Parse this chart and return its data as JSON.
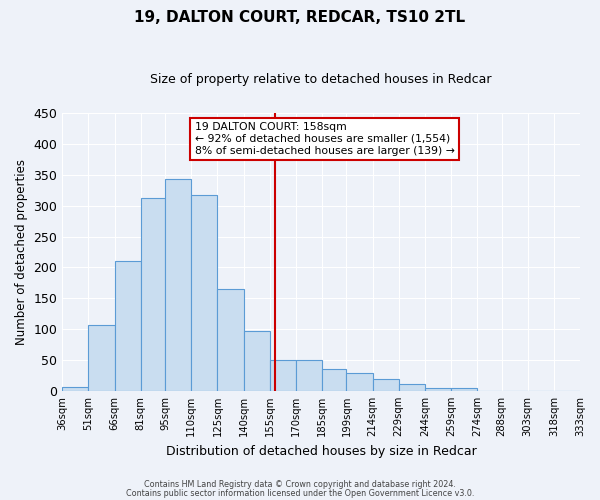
{
  "title": "19, DALTON COURT, REDCAR, TS10 2TL",
  "subtitle": "Size of property relative to detached houses in Redcar",
  "xlabel": "Distribution of detached houses by size in Redcar",
  "ylabel": "Number of detached properties",
  "bar_left_edges": [
    36,
    51,
    66,
    81,
    95,
    110,
    125,
    140,
    155,
    170,
    185,
    199,
    214,
    229,
    244,
    259,
    274,
    288,
    303,
    318
  ],
  "bar_widths": [
    15,
    15,
    15,
    14,
    15,
    15,
    15,
    15,
    15,
    15,
    14,
    15,
    15,
    15,
    15,
    15,
    14,
    15,
    15,
    15
  ],
  "bar_heights": [
    6,
    106,
    210,
    313,
    344,
    317,
    165,
    97,
    50,
    50,
    36,
    29,
    19,
    11,
    4,
    5,
    0,
    0,
    0,
    0
  ],
  "tick_positions": [
    36,
    51,
    66,
    81,
    95,
    110,
    125,
    140,
    155,
    170,
    185,
    199,
    214,
    229,
    244,
    259,
    274,
    288,
    303,
    318,
    333
  ],
  "tick_labels": [
    "36sqm",
    "51sqm",
    "66sqm",
    "81sqm",
    "95sqm",
    "110sqm",
    "125sqm",
    "140sqm",
    "155sqm",
    "170sqm",
    "185sqm",
    "199sqm",
    "214sqm",
    "229sqm",
    "244sqm",
    "259sqm",
    "274sqm",
    "288sqm",
    "303sqm",
    "318sqm",
    "333sqm"
  ],
  "vline_x": 158,
  "vline_color": "#cc0000",
  "bar_facecolor": "#c9ddf0",
  "bar_edgecolor": "#5b9bd5",
  "ylim": [
    0,
    450
  ],
  "yticks": [
    0,
    50,
    100,
    150,
    200,
    250,
    300,
    350,
    400,
    450
  ],
  "annotation_title": "19 DALTON COURT: 158sqm",
  "annotation_line1": "← 92% of detached houses are smaller (1,554)",
  "annotation_line2": "8% of semi-detached houses are larger (139) →",
  "annotation_box_color": "#cc0000",
  "footer_line1": "Contains HM Land Registry data © Crown copyright and database right 2024.",
  "footer_line2": "Contains public sector information licensed under the Open Government Licence v3.0.",
  "background_color": "#eef2f9",
  "grid_color": "#ffffff"
}
